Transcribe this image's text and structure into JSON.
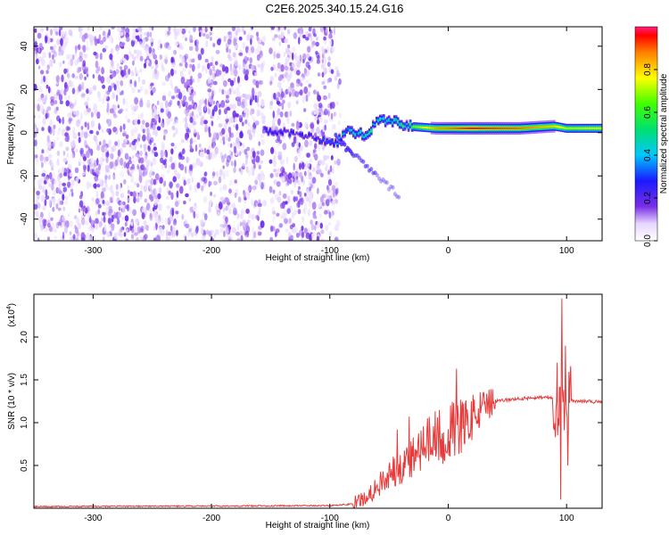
{
  "title": "C2E6.2025.340.15.24.G16",
  "colors": {
    "snr_line": "#e83a3a",
    "spec_dots": "#7a2ee6",
    "frame": "#000000"
  },
  "chart_data": [
    {
      "type": "heatmap",
      "name": "spectrogram",
      "xlabel": "Height of straight line (km)",
      "ylabel": "Frequency (Hz)",
      "xlim": [
        -350,
        130
      ],
      "ylim": [
        -50,
        49
      ],
      "xticks": [
        -300,
        -200,
        -100,
        0,
        100
      ],
      "xtick_labels": [
        "-300",
        "-200",
        "-100",
        "0",
        "100"
      ],
      "yticks": [
        -40,
        -20,
        0,
        20,
        40
      ],
      "ytick_labels": [
        "-40",
        "-20",
        "0",
        "20",
        "40"
      ],
      "colorbar": {
        "label": "Normalized spectral amplitude",
        "range": [
          0,
          1
        ],
        "ticks": [
          0.0,
          0.2,
          0.4,
          0.6,
          0.8
        ],
        "tick_labels": [
          "0.0",
          "0.2",
          "0.4",
          "0.6",
          "0.8"
        ]
      },
      "noise_region": {
        "x_range": [
          -350,
          -90
        ],
        "gap_x": [
          -155,
          -150
        ],
        "amplitude": 0.3
      },
      "tone_track": [
        {
          "x": -155,
          "f": 1,
          "a": 0.3
        },
        {
          "x": -130,
          "f": 0,
          "a": 0.25
        },
        {
          "x": -110,
          "f": -3,
          "a": 0.3
        },
        {
          "x": -95,
          "f": -5,
          "a": 0.35
        },
        {
          "x": -85,
          "f": 1,
          "a": 0.45
        },
        {
          "x": -70,
          "f": -1,
          "a": 0.6
        },
        {
          "x": -60,
          "f": 5,
          "a": 0.55
        },
        {
          "x": -50,
          "f": 6,
          "a": 0.5
        },
        {
          "x": -35,
          "f": 3,
          "a": 0.6
        },
        {
          "x": -10,
          "f": 2,
          "a": 0.85
        },
        {
          "x": 20,
          "f": 2,
          "a": 0.95
        },
        {
          "x": 60,
          "f": 2,
          "a": 0.9
        },
        {
          "x": 90,
          "f": 3,
          "a": 0.8
        },
        {
          "x": 100,
          "f": 2,
          "a": 0.7
        },
        {
          "x": 130,
          "f": 2,
          "a": 0.75
        }
      ],
      "drift_branch": [
        {
          "x": -95,
          "f": -2
        },
        {
          "x": -80,
          "f": -10
        },
        {
          "x": -60,
          "f": -20
        },
        {
          "x": -40,
          "f": -30
        }
      ]
    },
    {
      "type": "line",
      "name": "snr",
      "xlabel": "Height of straight line (km)",
      "ylabel": "SNR (10 * v/v)",
      "scale_label": "(x10",
      "scale_exp": "4",
      "scale_close": ")",
      "xlim": [
        -350,
        130
      ],
      "ylim": [
        0.0,
        2.5
      ],
      "xticks": [
        -300,
        -200,
        -100,
        0,
        100
      ],
      "xtick_labels": [
        "-300",
        "-200",
        "-100",
        "0",
        "100"
      ],
      "yticks": [
        0.5,
        1.0,
        1.5,
        2.0
      ],
      "ytick_labels": [
        "0.5",
        "1.0",
        "1.5",
        "2.0"
      ],
      "envelope": [
        {
          "x": -350,
          "y": 0.02
        },
        {
          "x": -100,
          "y": 0.03
        },
        {
          "x": -80,
          "y": 0.05
        },
        {
          "x": -70,
          "y": 0.12
        },
        {
          "x": -60,
          "y": 0.25
        },
        {
          "x": -50,
          "y": 0.4
        },
        {
          "x": -40,
          "y": 0.5
        },
        {
          "x": -30,
          "y": 0.6
        },
        {
          "x": -20,
          "y": 0.75
        },
        {
          "x": -10,
          "y": 0.82
        },
        {
          "x": 0,
          "y": 0.88
        },
        {
          "x": 10,
          "y": 0.95
        },
        {
          "x": 20,
          "y": 1.05
        },
        {
          "x": 30,
          "y": 1.18
        },
        {
          "x": 40,
          "y": 1.25
        },
        {
          "x": 60,
          "y": 1.28
        },
        {
          "x": 80,
          "y": 1.3
        },
        {
          "x": 100,
          "y": 1.26
        },
        {
          "x": 130,
          "y": 1.24
        }
      ],
      "spikes": [
        {
          "x": 7,
          "y": 1.63
        },
        {
          "x": -33,
          "y": 1.07
        },
        {
          "x": -43,
          "y": 0.92
        },
        {
          "x": 92,
          "y": 1.7
        },
        {
          "x": 96,
          "y": 2.45
        },
        {
          "x": 95,
          "y": 0.1
        },
        {
          "x": 99,
          "y": 1.9
        },
        {
          "x": 101,
          "y": 0.5
        }
      ]
    }
  ]
}
